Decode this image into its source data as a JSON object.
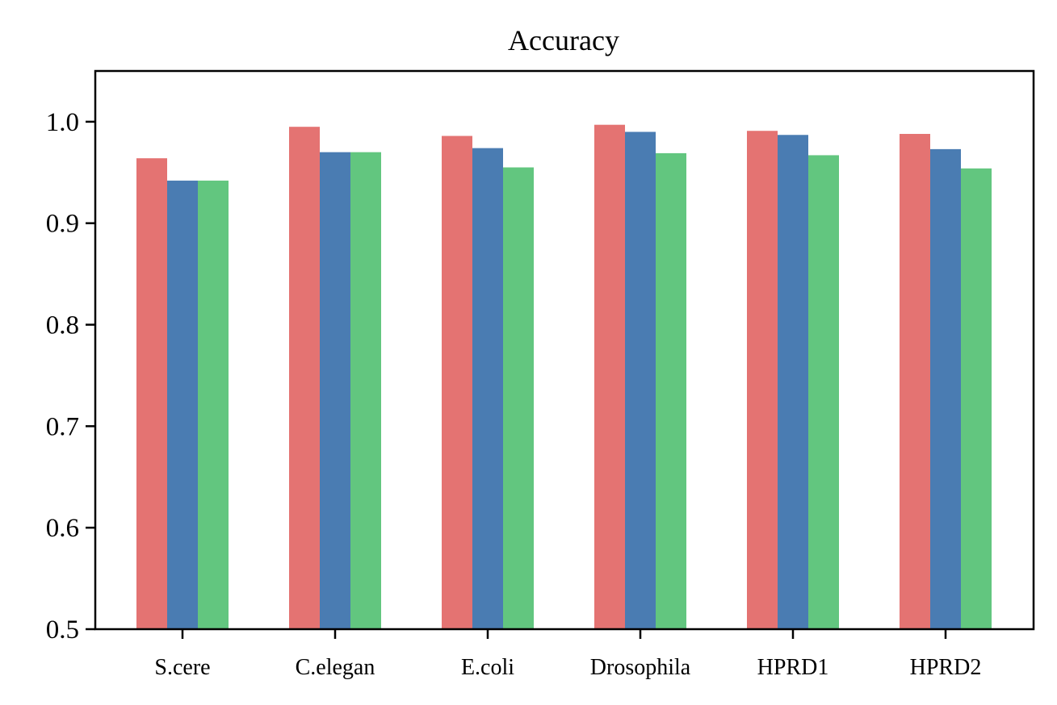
{
  "chart_data": {
    "type": "bar",
    "title": "Accuracy",
    "xlabel": "",
    "ylabel": "",
    "categories": [
      "S.cere",
      "C.elegan",
      "E.coli",
      "Drosophila",
      "HPRD1",
      "HPRD2"
    ],
    "ylim": [
      0.5,
      1.05
    ],
    "yticks": [
      "0.5",
      "0.6",
      "0.7",
      "0.8",
      "0.9",
      "1.0"
    ],
    "grid": false,
    "series": [
      {
        "color": "#e47372",
        "values": [
          0.964,
          0.995,
          0.986,
          0.997,
          0.991,
          0.988
        ]
      },
      {
        "color": "#4a7cb2",
        "values": [
          0.942,
          0.97,
          0.974,
          0.99,
          0.987,
          0.973
        ]
      },
      {
        "color": "#62c67f",
        "values": [
          0.942,
          0.97,
          0.955,
          0.969,
          0.967,
          0.954
        ]
      }
    ]
  }
}
